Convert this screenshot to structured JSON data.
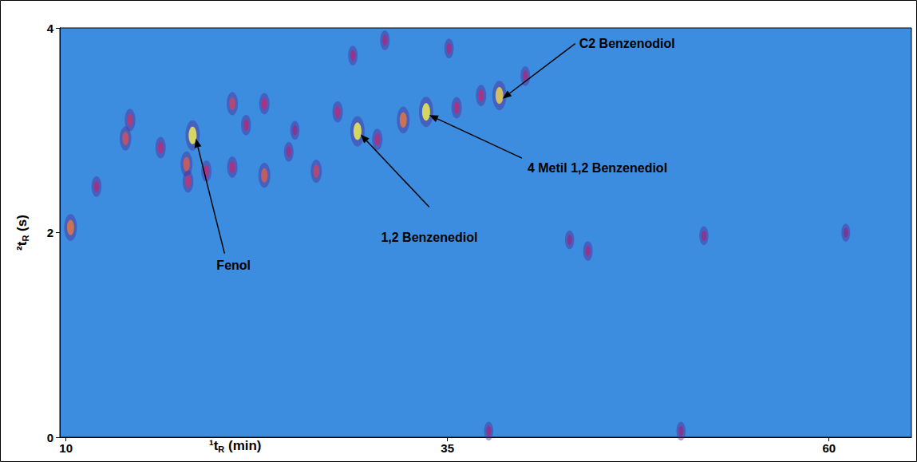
{
  "chart_data": {
    "type": "scatter",
    "xlabel": "¹tR (min)",
    "ylabel": "²tR (s)",
    "xlim": [
      9.6,
      65.4
    ],
    "xticks": [
      10,
      35,
      60
    ],
    "ylim": [
      0,
      4
    ],
    "yticks": [
      0,
      2,
      4
    ],
    "grid": false,
    "x": [
      10.3,
      13.9,
      14.2,
      16.2,
      17.9,
      18.3,
      18.0,
      19.2,
      20.9,
      20.9,
      21.8,
      23.0,
      23.0,
      24.6,
      26.4,
      27.8,
      29.1,
      30.4,
      32.1,
      33.6,
      35.6,
      37.2,
      38.4,
      40.1,
      28.8,
      30.9,
      35.1,
      43.0,
      44.2,
      51.8,
      61.1,
      37.7,
      50.3,
      12.0,
      25.0
    ],
    "y": [
      2.05,
      2.92,
      3.1,
      2.83,
      2.67,
      2.95,
      2.5,
      2.6,
      3.26,
      2.64,
      3.05,
      2.56,
      3.26,
      2.79,
      2.6,
      3.18,
      2.99,
      2.91,
      3.1,
      3.18,
      3.22,
      3.34,
      3.34,
      3.53,
      3.73,
      3.88,
      3.8,
      1.93,
      1.82,
      1.97,
      2.0,
      0.06,
      0.06,
      2.45,
      3.0
    ],
    "intensity": [
      0.8,
      0.65,
      0.55,
      0.5,
      0.7,
      1.0,
      0.55,
      0.5,
      0.6,
      0.5,
      0.45,
      0.7,
      0.5,
      0.4,
      0.6,
      0.5,
      1.0,
      0.5,
      0.8,
      1.0,
      0.5,
      0.5,
      0.95,
      0.4,
      0.4,
      0.4,
      0.4,
      0.35,
      0.4,
      0.35,
      0.3,
      0.35,
      0.35,
      0.45,
      0.35
    ],
    "annotations": [
      {
        "text": "Fenol",
        "x": 18.3,
        "y": 2.95
      },
      {
        "text": "1,2 Benzenediol",
        "x": 29.1,
        "y": 2.99
      },
      {
        "text": "4 Metil 1,2 Benzenediol",
        "x": 33.6,
        "y": 3.18
      },
      {
        "text": "C2 Benzenodiol",
        "x": 38.4,
        "y": 3.34
      }
    ]
  }
}
